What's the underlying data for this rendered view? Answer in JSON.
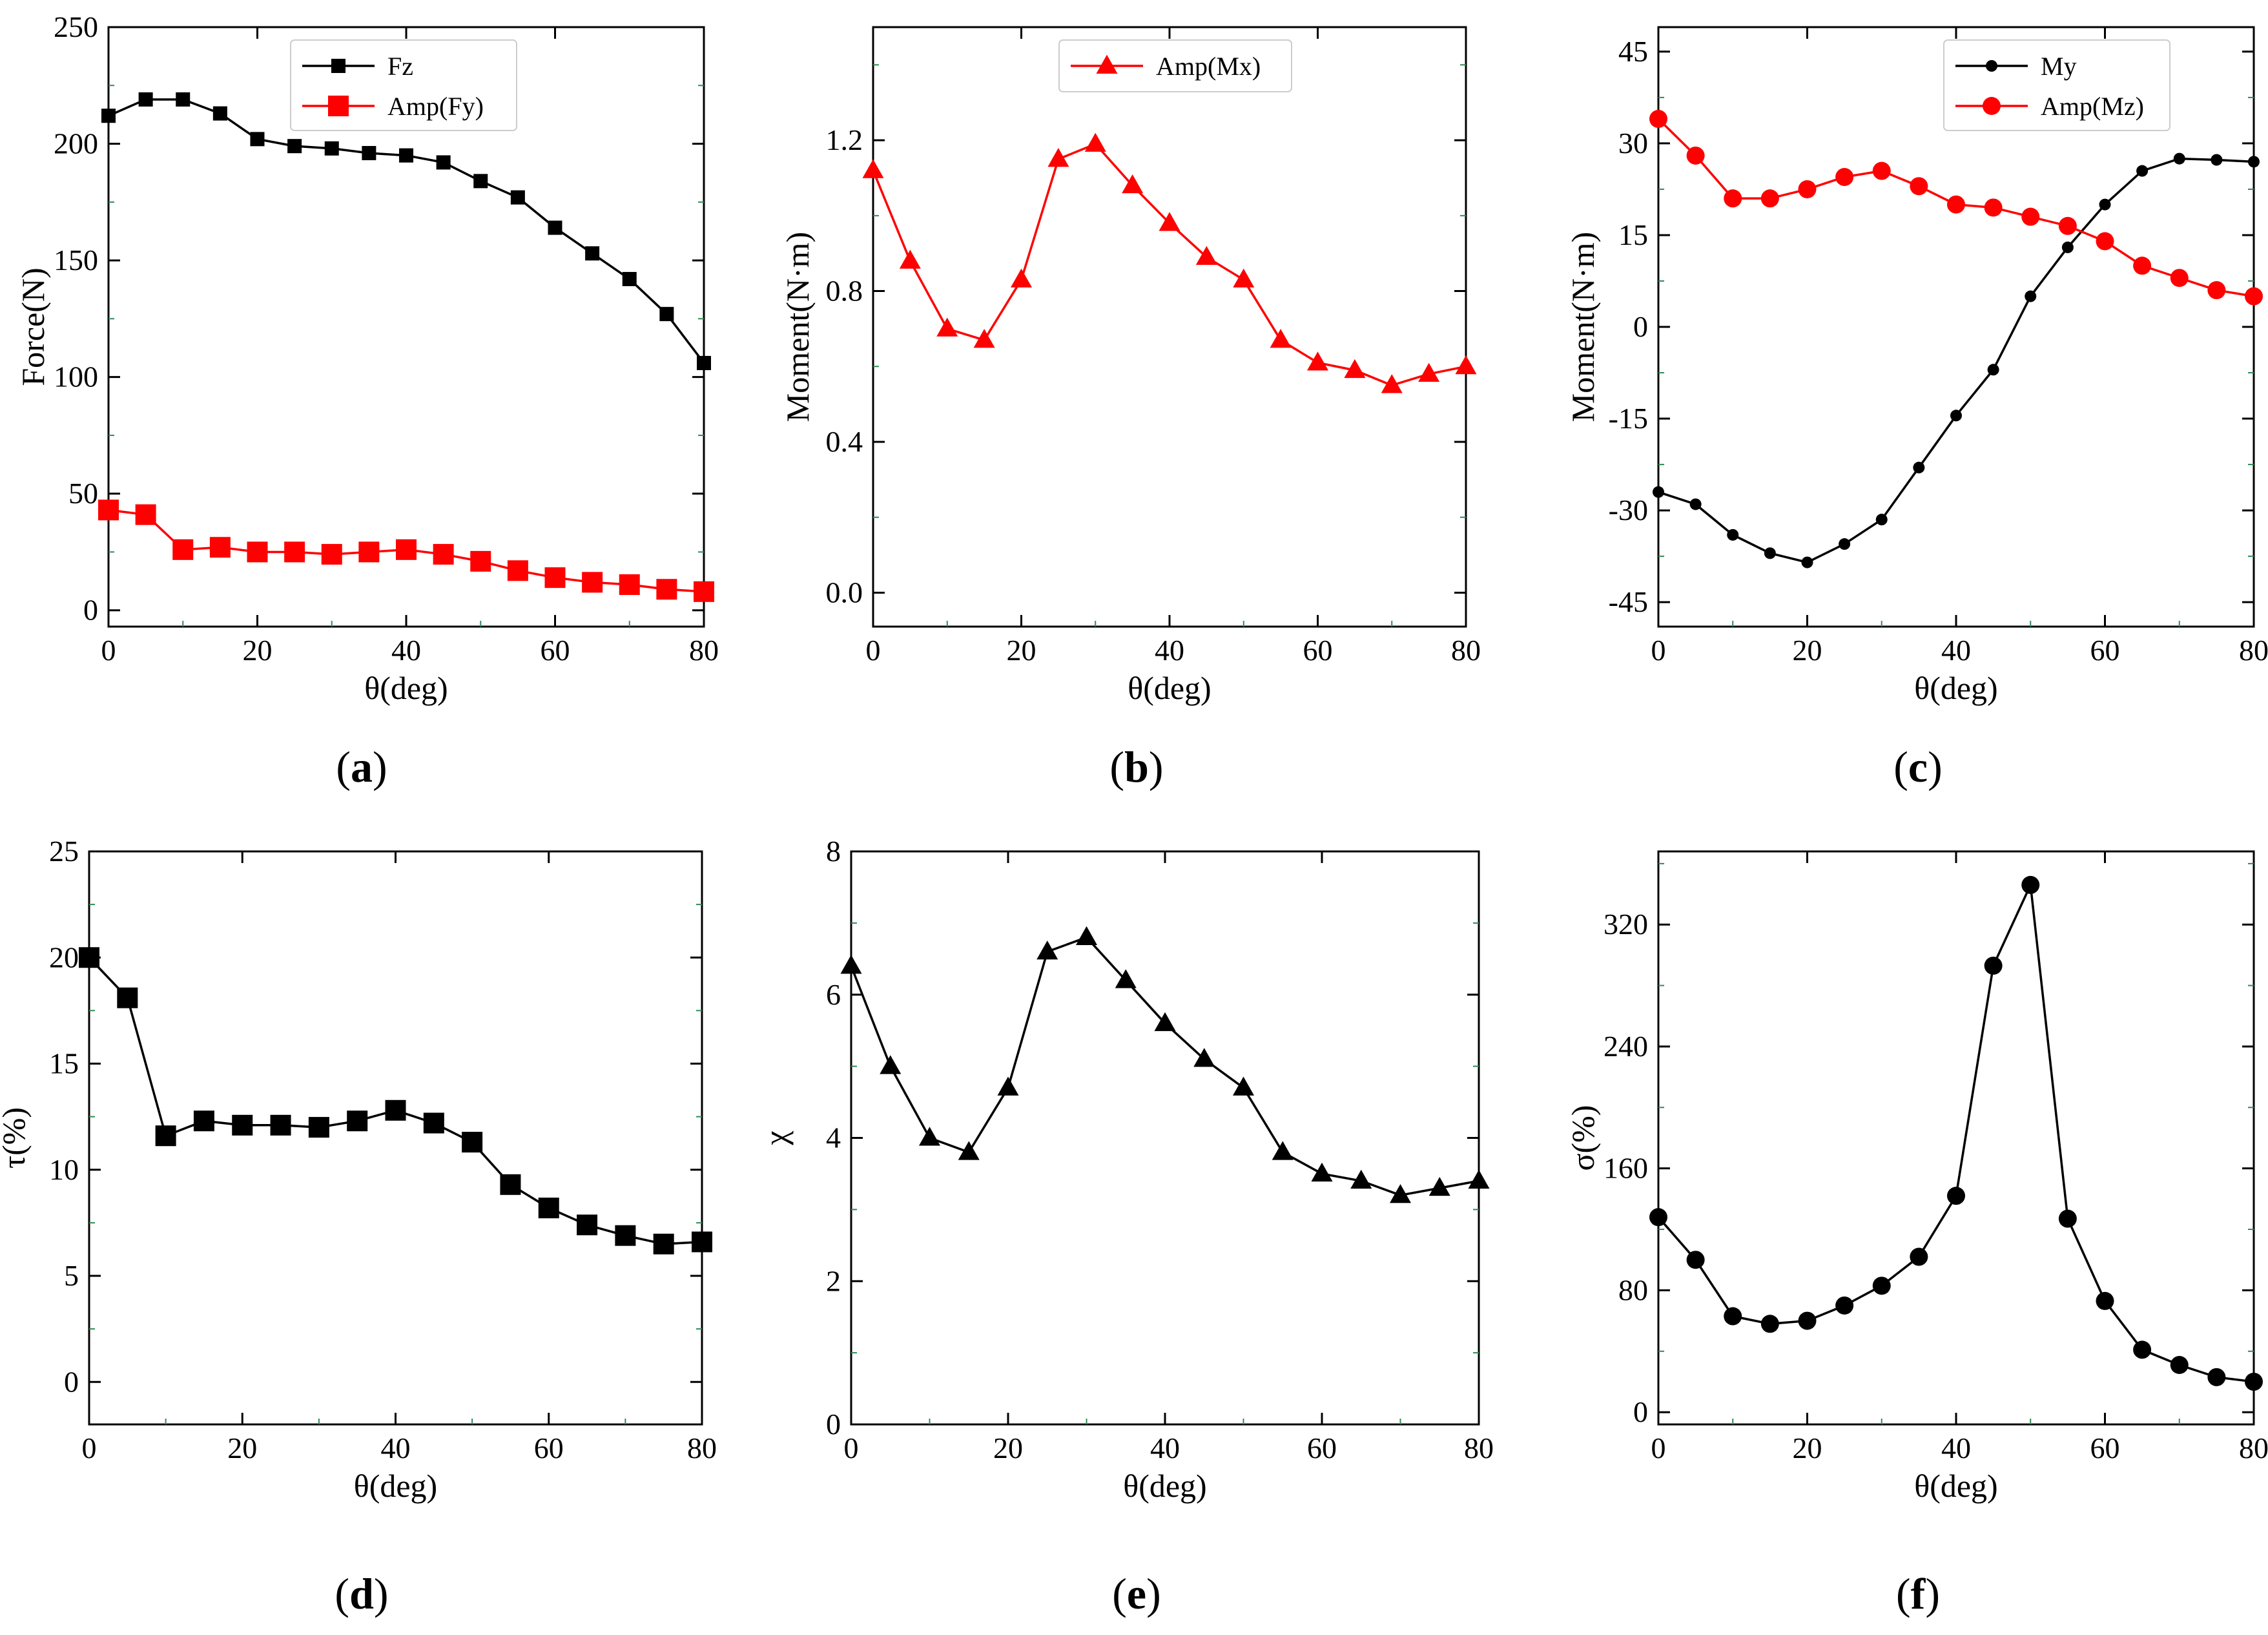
{
  "figure": {
    "panel_labels": [
      "(a)",
      "(b)",
      "(c)",
      "(d)",
      "(e)",
      "(f)"
    ]
  },
  "colors": {
    "black": "#000000",
    "red": "#ff0000",
    "minor_tick": "#2e8b57"
  },
  "chart_data": [
    {
      "id": "a",
      "type": "line",
      "title": "",
      "xlabel": "θ(deg)",
      "ylabel": "Force(N)",
      "xlim": [
        0,
        80
      ],
      "ylim": [
        -7,
        250
      ],
      "xticks": [
        0,
        20,
        40,
        60,
        80
      ],
      "yticks": [
        0,
        50,
        100,
        150,
        200,
        250
      ],
      "x": [
        0,
        5,
        10,
        15,
        20,
        25,
        30,
        35,
        40,
        45,
        50,
        55,
        60,
        65,
        70,
        75,
        80
      ],
      "legend_position": "top-center",
      "series": [
        {
          "name": "Fz",
          "color": "#000000",
          "marker": "square-small",
          "values": [
            212,
            219,
            219,
            213,
            202,
            199,
            198,
            196,
            195,
            192,
            184,
            177,
            164,
            153,
            142,
            127,
            106
          ]
        },
        {
          "name": "Amp(Fy)",
          "color": "#ff0000",
          "marker": "square-large",
          "values": [
            43,
            41,
            26,
            27,
            25,
            25,
            24,
            25,
            26,
            24,
            21,
            17,
            14,
            12,
            11,
            9,
            8
          ]
        }
      ]
    },
    {
      "id": "b",
      "type": "line",
      "title": "",
      "xlabel": "θ(deg)",
      "ylabel": "Moment(N·m)",
      "xlim": [
        0,
        80
      ],
      "ylim": [
        -0.09,
        1.5
      ],
      "xticks": [
        0,
        20,
        40,
        60,
        80
      ],
      "yticks": [
        0.0,
        0.4,
        0.8,
        1.2
      ],
      "ytick_labels": [
        "0.0",
        "0.4",
        "0.8",
        "1.2"
      ],
      "x": [
        0,
        5,
        10,
        15,
        20,
        25,
        30,
        35,
        40,
        45,
        50,
        55,
        60,
        65,
        70,
        75,
        80
      ],
      "legend_position": "top-center",
      "series": [
        {
          "name": "Amp(Mx)",
          "color": "#ff0000",
          "marker": "triangle",
          "values": [
            1.12,
            0.88,
            0.7,
            0.67,
            0.83,
            1.15,
            1.19,
            1.08,
            0.98,
            0.89,
            0.83,
            0.67,
            0.61,
            0.59,
            0.55,
            0.58,
            0.6
          ]
        }
      ]
    },
    {
      "id": "c",
      "type": "line",
      "title": "",
      "xlabel": "θ(deg)",
      "ylabel": "Moment(N·m)",
      "xlim": [
        0,
        80
      ],
      "ylim": [
        -49,
        49
      ],
      "xticks": [
        0,
        20,
        40,
        60,
        80
      ],
      "yticks": [
        -45,
        -30,
        -15,
        0,
        15,
        30,
        45
      ],
      "x": [
        0,
        5,
        10,
        15,
        20,
        25,
        30,
        35,
        40,
        45,
        50,
        55,
        60,
        65,
        70,
        75,
        80
      ],
      "legend_position": "top-right",
      "series": [
        {
          "name": "My",
          "color": "#000000",
          "marker": "circle-small",
          "values": [
            -27,
            -29,
            -34,
            -37,
            -38.5,
            -35.5,
            -31.5,
            -23,
            -14.5,
            -7,
            5,
            13,
            20,
            25.5,
            27.5,
            27.3,
            27
          ]
        },
        {
          "name": "Amp(Mz)",
          "color": "#ff0000",
          "marker": "circle-large",
          "values": [
            34,
            28,
            21,
            21,
            22.5,
            24.5,
            25.5,
            23,
            20,
            19.5,
            18,
            16.5,
            14,
            10,
            8,
            6,
            5
          ]
        }
      ]
    },
    {
      "id": "d",
      "type": "line",
      "title": "",
      "xlabel": "θ(deg)",
      "ylabel": "τ(%)",
      "xlim": [
        0,
        80
      ],
      "ylim": [
        -2,
        25
      ],
      "xticks": [
        0,
        20,
        40,
        60,
        80
      ],
      "yticks": [
        0,
        5,
        10,
        15,
        20,
        25
      ],
      "x": [
        0,
        5,
        10,
        15,
        20,
        25,
        30,
        35,
        40,
        45,
        50,
        55,
        60,
        65,
        70,
        75,
        80
      ],
      "legend_position": "none",
      "series": [
        {
          "name": "τ",
          "color": "#000000",
          "marker": "square-large",
          "values": [
            20.0,
            18.1,
            11.6,
            12.3,
            12.1,
            12.1,
            12.0,
            12.3,
            12.8,
            12.2,
            11.3,
            9.3,
            8.2,
            7.4,
            6.9,
            6.5,
            6.6
          ]
        }
      ]
    },
    {
      "id": "e",
      "type": "line",
      "title": "",
      "xlabel": "θ(deg)",
      "ylabel": "χ",
      "xlim": [
        0,
        80
      ],
      "ylim": [
        0,
        8
      ],
      "xticks": [
        0,
        20,
        40,
        60,
        80
      ],
      "yticks": [
        0,
        2,
        4,
        6,
        8
      ],
      "x": [
        0,
        5,
        10,
        15,
        20,
        25,
        30,
        35,
        40,
        45,
        50,
        55,
        60,
        65,
        70,
        75,
        80
      ],
      "legend_position": "none",
      "series": [
        {
          "name": "χ",
          "color": "#000000",
          "marker": "triangle",
          "values": [
            6.4,
            5.0,
            4.0,
            3.8,
            4.7,
            6.6,
            6.8,
            6.2,
            5.6,
            5.1,
            4.7,
            3.8,
            3.5,
            3.4,
            3.2,
            3.3,
            3.4
          ]
        }
      ]
    },
    {
      "id": "f",
      "type": "line",
      "title": "",
      "xlabel": "θ(deg)",
      "ylabel": "σ(%)",
      "xlim": [
        0,
        80
      ],
      "ylim": [
        -8,
        368
      ],
      "xticks": [
        0,
        20,
        40,
        60,
        80
      ],
      "yticks": [
        0,
        80,
        160,
        240,
        320
      ],
      "x": [
        0,
        5,
        10,
        15,
        20,
        25,
        30,
        35,
        40,
        45,
        50,
        55,
        60,
        65,
        70,
        75,
        80
      ],
      "legend_position": "none",
      "series": [
        {
          "name": "σ",
          "color": "#000000",
          "marker": "circle-large",
          "values": [
            128,
            100,
            63,
            58,
            60,
            70,
            83,
            102,
            142,
            293,
            346,
            127,
            73,
            41,
            31,
            23,
            20
          ]
        }
      ]
    }
  ]
}
